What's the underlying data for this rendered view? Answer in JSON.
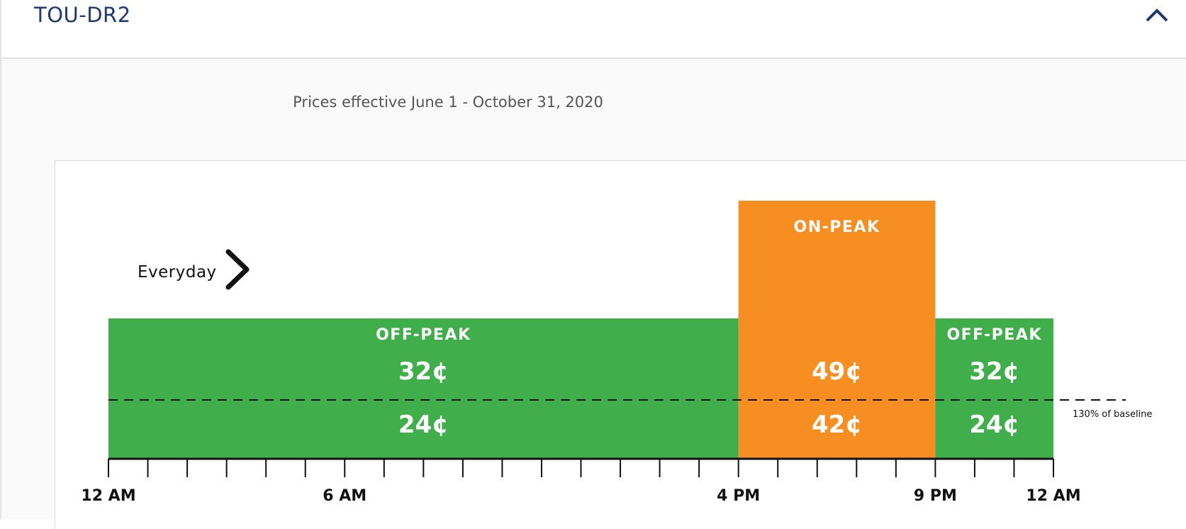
{
  "header": {
    "title": "TOU-DR2",
    "toggle_icon": "chevron-up-icon"
  },
  "panel": {
    "subtitle": "Prices effective June 1 - October 31, 2020"
  },
  "colors": {
    "off_peak": "#41ae4c",
    "on_peak": "#f68e22",
    "title_text": "#1e3a6e",
    "axis": "#111111"
  },
  "chart_data": {
    "type": "bar",
    "day_label": "Everyday",
    "day_label_icon": "chevron-right-icon",
    "x_unit": "hour",
    "xlim": [
      0,
      24
    ],
    "x_ticks": [
      0,
      1,
      2,
      3,
      4,
      5,
      6,
      7,
      8,
      9,
      10,
      11,
      12,
      13,
      14,
      15,
      16,
      17,
      18,
      19,
      20,
      21,
      22,
      23,
      24
    ],
    "x_tick_labels": [
      {
        "hour": 0,
        "label": "12 AM"
      },
      {
        "hour": 6,
        "label": "6 AM"
      },
      {
        "hour": 16,
        "label": "4 PM"
      },
      {
        "hour": 21,
        "label": "9 PM"
      },
      {
        "hour": 24,
        "label": "12 AM"
      }
    ],
    "periods": [
      {
        "name": "OFF-PEAK",
        "start_hour": 0,
        "end_hour": 16,
        "price_above_baseline": "32¢",
        "price_up_to_baseline": "24¢",
        "tier": "off_peak"
      },
      {
        "name": "ON-PEAK",
        "start_hour": 16,
        "end_hour": 21,
        "price_above_baseline": "49¢",
        "price_up_to_baseline": "42¢",
        "tier": "on_peak"
      },
      {
        "name": "OFF-PEAK",
        "start_hour": 21,
        "end_hour": 24,
        "price_above_baseline": "32¢",
        "price_up_to_baseline": "24¢",
        "tier": "off_peak"
      }
    ],
    "baseline_line": {
      "label": "130% of baseline",
      "style": "dashed"
    },
    "grid": false,
    "legend": "none"
  }
}
